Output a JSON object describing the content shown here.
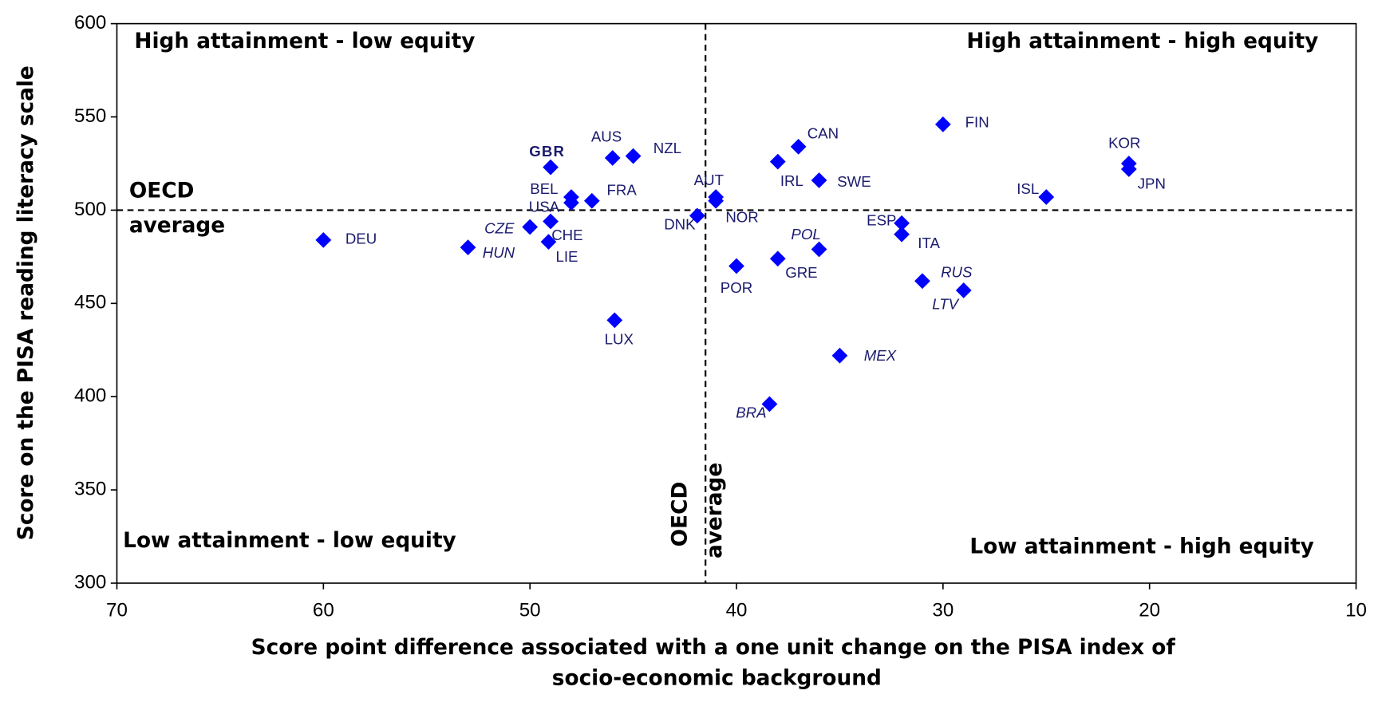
{
  "chart_data": {
    "type": "scatter",
    "x_label": "Score point difference associated with a one unit change on the PISA index of socio-economic background",
    "y_label": "Score on the PISA reading literacy scale",
    "xlim": [
      70,
      10
    ],
    "ylim": [
      300,
      600
    ],
    "xticks": [
      70,
      60,
      50,
      40,
      30,
      20,
      10
    ],
    "yticks": [
      300,
      350,
      400,
      450,
      500,
      550,
      600
    ],
    "color": "#0000ff",
    "points": [
      {
        "label": "DEU",
        "x": 60,
        "y": 484
      },
      {
        "label": "HUN",
        "x": 53,
        "y": 480,
        "style": "italic"
      },
      {
        "label": "CZE",
        "x": 50,
        "y": 491,
        "style": "italic"
      },
      {
        "label": "CHE",
        "x": 49,
        "y": 494
      },
      {
        "label": "LIE",
        "x": 49.1,
        "y": 483
      },
      {
        "label": "GBR",
        "x": 49,
        "y": 523,
        "style": "bold"
      },
      {
        "label": "BEL",
        "x": 48,
        "y": 507
      },
      {
        "label": "USA",
        "x": 48,
        "y": 504
      },
      {
        "label": "FRA",
        "x": 47,
        "y": 505
      },
      {
        "label": "AUS",
        "x": 46,
        "y": 528
      },
      {
        "label": "NZL",
        "x": 45,
        "y": 529
      },
      {
        "label": "LUX",
        "x": 45.9,
        "y": 441
      },
      {
        "label": "AUT",
        "x": 41,
        "y": 507
      },
      {
        "label": "NOR",
        "x": 41,
        "y": 505
      },
      {
        "label": "DNK",
        "x": 41.9,
        "y": 497
      },
      {
        "label": "POR",
        "x": 40,
        "y": 470
      },
      {
        "label": "IRL",
        "x": 38,
        "y": 526
      },
      {
        "label": "GRE",
        "x": 38,
        "y": 474
      },
      {
        "label": "BRA",
        "x": 38.4,
        "y": 396,
        "style": "italic"
      },
      {
        "label": "CAN",
        "x": 37,
        "y": 534
      },
      {
        "label": "SWE",
        "x": 36,
        "y": 516
      },
      {
        "label": "POL",
        "x": 36,
        "y": 479,
        "style": "italic"
      },
      {
        "label": "MEX",
        "x": 35,
        "y": 422,
        "style": "italic"
      },
      {
        "label": "ESP",
        "x": 32,
        "y": 493
      },
      {
        "label": "ITA",
        "x": 32,
        "y": 487
      },
      {
        "label": "RUS",
        "x": 31,
        "y": 462,
        "style": "italic"
      },
      {
        "label": "LTV",
        "x": 29,
        "y": 457,
        "style": "italic"
      },
      {
        "label": "FIN",
        "x": 30,
        "y": 546
      },
      {
        "label": "ISL",
        "x": 25,
        "y": 507
      },
      {
        "label": "KOR",
        "x": 21,
        "y": 525
      },
      {
        "label": "JPN",
        "x": 21,
        "y": 522
      }
    ],
    "reference_lines": [
      {
        "axis": "x",
        "value": 41.5,
        "label": "OECD average"
      },
      {
        "axis": "y",
        "value": 500,
        "label": "OECD average"
      }
    ],
    "annotations": [
      "High attainment - low equity",
      "High attainment - high equity",
      "Low attainment - low equity",
      "Low attainment - high equity"
    ]
  }
}
